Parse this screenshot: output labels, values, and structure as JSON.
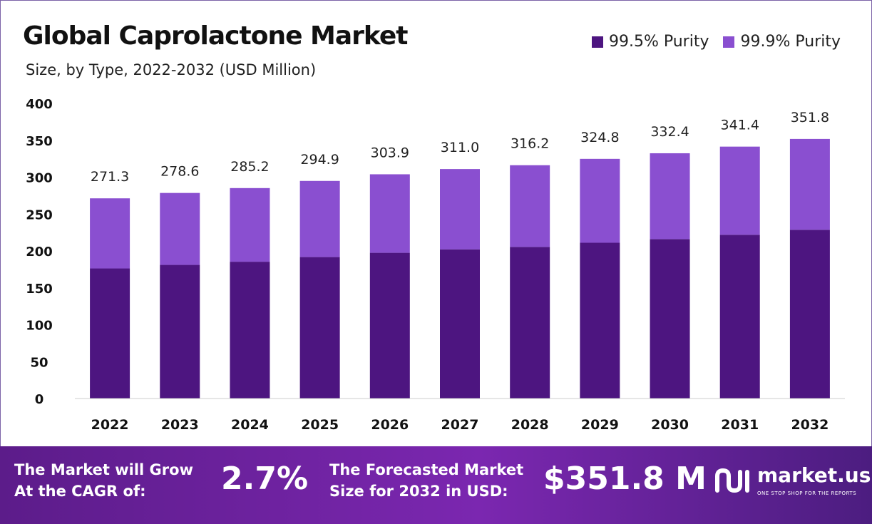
{
  "colors": {
    "purity_995": "#4d1580",
    "purity_999": "#8a4fd0",
    "axis_text": "#111111",
    "label_text": "#222222"
  },
  "chart_data": {
    "type": "bar",
    "stacked": true,
    "title": "Global Caprolactone Market",
    "subtitle": "Size, by Type, 2022-2032 (USD Million)",
    "categories": [
      "2022",
      "2023",
      "2024",
      "2025",
      "2026",
      "2027",
      "2028",
      "2029",
      "2030",
      "2031",
      "2032"
    ],
    "series": [
      {
        "name": "99.5% Purity",
        "values": [
          176.3,
          181.1,
          185.4,
          191.7,
          197.5,
          202.2,
          205.5,
          211.1,
          216.1,
          221.9,
          228.7
        ]
      },
      {
        "name": "99.9% Purity",
        "values": [
          95.0,
          97.5,
          99.8,
          103.2,
          106.4,
          108.8,
          110.7,
          113.7,
          116.3,
          119.5,
          123.1
        ]
      }
    ],
    "totals": [
      "271.3",
      "278.6",
      "285.2",
      "294.9",
      "303.9",
      "311.0",
      "316.2",
      "324.8",
      "332.4",
      "341.4",
      "351.8"
    ],
    "ylim": [
      0,
      400
    ],
    "yticks": [
      0,
      50,
      100,
      150,
      200,
      250,
      300,
      350,
      400
    ],
    "legend_position": "top-right",
    "grid": false
  },
  "footer": {
    "cagr_label": "The Market will Grow\nAt the CAGR of:",
    "cagr_value": "2.7%",
    "forecast_label": "The Forecasted Market\nSize for 2032 in USD:",
    "forecast_value": "$351.8 M",
    "brand_name": "market.us",
    "brand_tagline": "ONE STOP SHOP FOR THE REPORTS"
  }
}
